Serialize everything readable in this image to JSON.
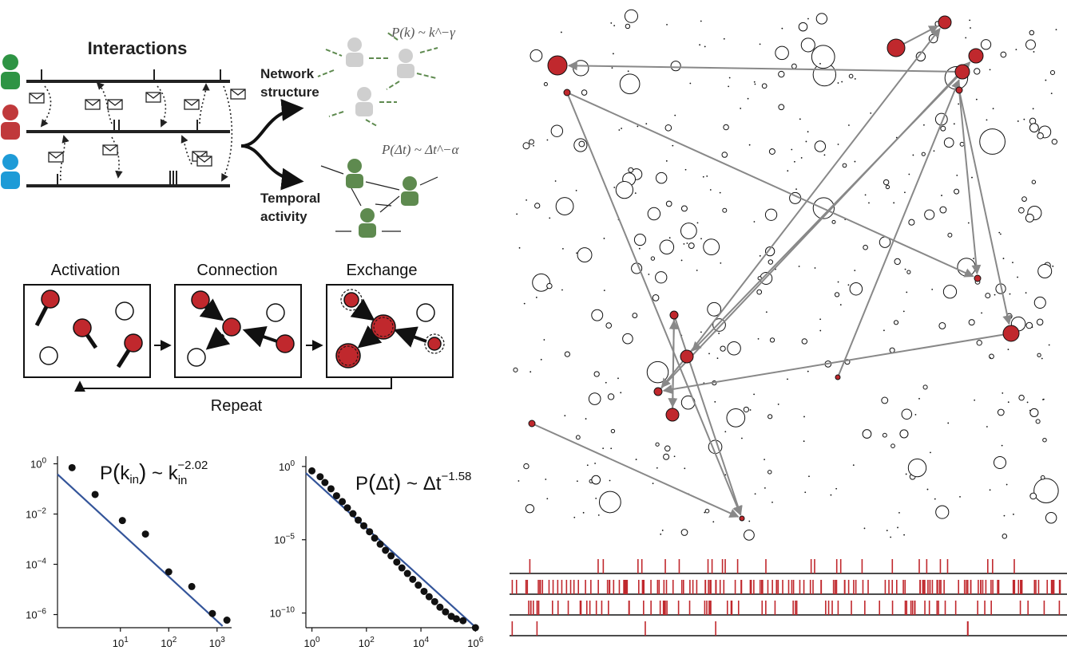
{
  "figure": {
    "interactions_title": "Interactions",
    "branch_top": [
      "Network",
      "structure"
    ],
    "branch_bottom": [
      "Temporal",
      "activity"
    ],
    "formula_network": "P(k) ~ k^−γ",
    "formula_temporal": "P(Δt) ~ Δt^−α",
    "stages": [
      "Activation",
      "Connection",
      "Exchange"
    ],
    "repeat_label": "Repeat",
    "colors": {
      "user1": "#2e9444",
      "user2": "#c0393b",
      "user3": "#1e9bd7",
      "node_active": "#c0282d",
      "edge": "#888888",
      "green_person": "#5e8a4f",
      "grey_person": "#cfcfcf"
    }
  },
  "chart_data": [
    {
      "type": "scatter",
      "title": "P(k_in) ~ k_in^−2.02",
      "x_scale": "log",
      "y_scale": "log",
      "xlim": [
        0.5,
        2000
      ],
      "ylim": [
        3e-07,
        2
      ],
      "x_ticks": [
        "10^1",
        "10^2",
        "10^3"
      ],
      "y_ticks": [
        "10^0",
        "10^-2",
        "10^-4",
        "10^-6"
      ],
      "points": {
        "x": [
          1,
          3,
          11,
          33,
          100,
          300,
          800,
          1600
        ],
        "y": [
          0.7,
          0.06,
          0.0055,
          0.0016,
          5e-05,
          1.3e-05,
          1.1e-06,
          6e-07
        ]
      },
      "fit": {
        "name": "power-law fit",
        "exponent": -2.02,
        "x": [
          0.5,
          1300
        ],
        "y": [
          0.38,
          3.5e-07
        ]
      }
    },
    {
      "type": "scatter",
      "title": "P(Δt) ~ Δt^−1.58",
      "x_scale": "log",
      "y_scale": "log",
      "xlim": [
        0.6,
        1200000
      ],
      "ylim": [
        1e-11,
        5
      ],
      "x_ticks": [
        "10^0",
        "10^2",
        "10^4",
        "10^6"
      ],
      "y_ticks": [
        "10^0",
        "10^-5",
        "10^-10"
      ],
      "points": {
        "x": [
          1,
          2,
          3,
          5,
          8,
          13,
          20,
          32,
          50,
          80,
          130,
          200,
          320,
          500,
          800,
          1300,
          2000,
          3200,
          5000,
          8000,
          13000,
          20000,
          32000,
          50000,
          80000,
          130000,
          200000,
          350000,
          1000000
        ],
        "y": [
          0.5,
          0.2,
          0.08,
          0.03,
          0.01,
          0.004,
          0.0015,
          0.0006,
          0.00022,
          9e-05,
          3.5e-05,
          1.3e-05,
          5e-06,
          1.9e-06,
          8e-07,
          3e-07,
          1.2e-07,
          5e-08,
          2e-08,
          8e-09,
          3e-09,
          1.3e-09,
          6e-10,
          2.5e-10,
          1.2e-10,
          6e-11,
          4e-11,
          3e-11,
          1e-11
        ]
      },
      "fit": {
        "name": "power-law fit",
        "exponent": -1.58,
        "x": [
          0.6,
          1200000
        ],
        "y": [
          0.35,
          8e-12
        ]
      }
    }
  ],
  "network": {
    "active_nodes": [
      {
        "id": "a1",
        "x": 1183,
        "y": 28,
        "r": 8
      },
      {
        "id": "a2",
        "x": 1122,
        "y": 60,
        "r": 11
      },
      {
        "id": "a3",
        "x": 1222,
        "y": 70,
        "r": 9
      },
      {
        "id": "a4",
        "x": 698,
        "y": 82,
        "r": 12
      },
      {
        "id": "a5",
        "x": 1205,
        "y": 90,
        "r": 9
      },
      {
        "id": "a6",
        "x": 710,
        "y": 116,
        "r": 4
      },
      {
        "id": "a7",
        "x": 1201,
        "y": 113,
        "r": 4
      },
      {
        "id": "a8",
        "x": 1224,
        "y": 349,
        "r": 4
      },
      {
        "id": "a9",
        "x": 844,
        "y": 395,
        "r": 5
      },
      {
        "id": "a10",
        "x": 1266,
        "y": 418,
        "r": 10
      },
      {
        "id": "a11",
        "x": 860,
        "y": 447,
        "r": 8
      },
      {
        "id": "a12",
        "x": 824,
        "y": 491,
        "r": 5
      },
      {
        "id": "a13",
        "x": 1049,
        "y": 473,
        "r": 3
      },
      {
        "id": "a14",
        "x": 842,
        "y": 520,
        "r": 8
      },
      {
        "id": "a15",
        "x": 666,
        "y": 531,
        "r": 4
      },
      {
        "id": "a16",
        "x": 929,
        "y": 650,
        "r": 3
      }
    ],
    "edges": [
      [
        "a2",
        "a1"
      ],
      [
        "a5",
        "a4"
      ],
      [
        "a6",
        "a16"
      ],
      [
        "a6",
        "a8"
      ],
      [
        "a7",
        "a8"
      ],
      [
        "a7",
        "a10"
      ],
      [
        "a5",
        "a11"
      ],
      [
        "a11",
        "a1"
      ],
      [
        "a11",
        "a12"
      ],
      [
        "a12",
        "a3"
      ],
      [
        "a13",
        "a5"
      ],
      [
        "a10",
        "a12"
      ],
      [
        "a9",
        "a14"
      ],
      [
        "a9",
        "a16"
      ],
      [
        "a15",
        "a16"
      ],
      [
        "a14",
        "a9"
      ]
    ],
    "activity_rows": [
      {
        "events": 26,
        "seed": 3
      },
      {
        "events": 140,
        "seed": 7
      },
      {
        "events": 70,
        "seed": 11
      },
      {
        "events": 6,
        "seed": 19
      }
    ]
  }
}
